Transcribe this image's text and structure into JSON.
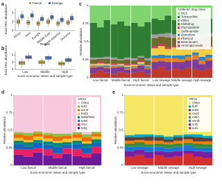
{
  "chart_data": [
    {
      "type": "box",
      "label": "a",
      "ylabel": "Total ARG abundance",
      "xlabel": "Region",
      "categories": [
        "Africa",
        "Asia",
        "Europe",
        "Middle East",
        "North America",
        "Oceania"
      ],
      "series": [
        {
          "name": "Faecal",
          "color": "#c9a24b",
          "values": [
            [
              2.4,
              2.8,
              3.0,
              3.2,
              3.6
            ],
            [
              2.3,
              2.7,
              2.9,
              3.1,
              3.5
            ],
            [
              2.2,
              2.6,
              2.8,
              3.0,
              3.4
            ],
            [
              2.5,
              2.8,
              3.0,
              3.2,
              3.5
            ],
            [
              2.3,
              2.6,
              2.8,
              3.0,
              3.3
            ],
            [
              2.4,
              2.7,
              2.9,
              3.1,
              3.4
            ]
          ]
        },
        {
          "name": "Sewage",
          "color": "#3f6fca",
          "values": [
            [
              3.0,
              3.4,
              3.6,
              3.8,
              4.2
            ],
            [
              3.1,
              3.5,
              3.7,
              3.9,
              4.3
            ],
            [
              2.8,
              3.1,
              3.3,
              3.5,
              3.8
            ],
            [
              3.0,
              3.3,
              3.5,
              3.7,
              4.0
            ],
            [
              2.7,
              3.0,
              3.2,
              3.4,
              3.7
            ],
            [
              2.9,
              3.2,
              3.4,
              3.6,
              3.9
            ]
          ]
        }
      ],
      "ylim": [
        2,
        4.5
      ],
      "yticks": [
        2,
        3,
        4
      ],
      "legend": "top"
    },
    {
      "type": "box",
      "label": "b",
      "ylabel": "Total ARG abundance",
      "xlabel": "Socio-economic status and sample type",
      "categories": [
        "Low",
        "Middle",
        "High"
      ],
      "series": [
        {
          "color": "#c9a24b",
          "values": [
            [
              2.3,
              2.7,
              2.9,
              3.1,
              3.5
            ],
            [
              2.4,
              2.8,
              3.0,
              3.2,
              3.6
            ],
            [
              2.2,
              2.6,
              2.8,
              3.0,
              3.3
            ]
          ]
        },
        {
          "color": "#3f6fca",
          "values": [
            [
              3.1,
              3.5,
              3.7,
              3.9,
              4.3
            ],
            [
              3.0,
              3.4,
              3.6,
              3.8,
              4.1
            ],
            [
              2.8,
              3.1,
              3.3,
              3.5,
              3.8
            ]
          ]
        }
      ],
      "ylim": [
        2,
        4.5
      ],
      "yticks": [
        2,
        3,
        4
      ]
    },
    {
      "type": "stacked_bar",
      "label": "c",
      "ylabel": "Relative abundance",
      "xlabel": "Socio-economic status and sample type",
      "groups": [
        "Low faecal",
        "Middle faecal",
        "High faecal",
        "Low sewage",
        "Middle sewage",
        "High sewage"
      ],
      "legend_title": "Antibiotic drug class",
      "series": [
        {
          "name": "Aminoglycoside",
          "color": "#c0392b",
          "values": [
            0.06,
            0.1,
            0.07,
            0.05,
            0.08,
            0.06,
            0.07,
            0.09,
            0.05,
            0.12,
            0.15,
            0.1,
            0.13,
            0.11,
            0.14,
            0.12,
            0.1,
            0.13
          ]
        },
        {
          "name": "Beta-lactam",
          "color": "#7d3c98",
          "values": [
            0.08,
            0.05,
            0.06,
            0.09,
            0.07,
            0.05,
            0.06,
            0.08,
            0.07,
            0.1,
            0.08,
            0.12,
            0.09,
            0.11,
            0.1,
            0.13,
            0.09,
            0.11
          ]
        },
        {
          "name": "Phenicol",
          "color": "#e67e22",
          "values": [
            0.02,
            0.01,
            0.02,
            0.02,
            0.01,
            0.02,
            0.02,
            0.01,
            0.02,
            0.05,
            0.04,
            0.06,
            0.05,
            0.04,
            0.05,
            0.06,
            0.05,
            0.04
          ]
        },
        {
          "name": "Quinolone",
          "color": "#2e86c1",
          "values": [
            0.01,
            0.01,
            0.02,
            0.01,
            0.01,
            0.02,
            0.01,
            0.01,
            0.02,
            0.04,
            0.05,
            0.03,
            0.04,
            0.05,
            0.03,
            0.04,
            0.05,
            0.04
          ]
        },
        {
          "name": "Sulfonamide",
          "color": "#f4d03f",
          "values": [
            0.02,
            0.03,
            0.02,
            0.01,
            0.02,
            0.02,
            0.02,
            0.03,
            0.01,
            0.1,
            0.12,
            0.09,
            0.11,
            0.1,
            0.12,
            0.08,
            0.1,
            0.11
          ]
        },
        {
          "name": "Glycopeptide",
          "color": "#e91e63",
          "values": [
            0.01,
            0.02,
            0.01,
            0.02,
            0.01,
            0.02,
            0.01,
            0.02,
            0.01,
            0.02,
            0.03,
            0.02,
            0.02,
            0.03,
            0.02,
            0.02,
            0.03,
            0.02
          ]
        },
        {
          "name": "Multidrug",
          "color": "#6e6a2c",
          "values": [
            0.05,
            0.04,
            0.06,
            0.05,
            0.04,
            0.06,
            0.05,
            0.04,
            0.06,
            0.12,
            0.1,
            0.14,
            0.11,
            0.13,
            0.12,
            0.11,
            0.14,
            0.12
          ]
        },
        {
          "name": "Other",
          "color": "#9e9e9e",
          "values": [
            0.03,
            0.02,
            0.03,
            0.03,
            0.02,
            0.03,
            0.03,
            0.02,
            0.03,
            0.05,
            0.04,
            0.06,
            0.05,
            0.04,
            0.05,
            0.06,
            0.04,
            0.05
          ]
        },
        {
          "name": "Tetracycline",
          "color": "#2e7d32",
          "values": [
            0.48,
            0.42,
            0.51,
            0.46,
            0.52,
            0.44,
            0.49,
            0.41,
            0.5,
            0.22,
            0.19,
            0.24,
            0.2,
            0.23,
            0.21,
            0.25,
            0.22,
            0.2
          ]
        },
        {
          "name": "MLS",
          "color": "#7fd46f",
          "values": [
            0.24,
            0.3,
            0.2,
            0.26,
            0.22,
            0.28,
            0.24,
            0.29,
            0.23,
            0.18,
            0.2,
            0.14,
            0.2,
            0.16,
            0.16,
            0.13,
            0.18,
            0.18
          ]
        }
      ],
      "ylim": [
        0,
        1
      ],
      "yticks": [
        0,
        0.25,
        0.5,
        0.75,
        1
      ]
    },
    {
      "type": "stacked_bar",
      "label": "d",
      "ylabel": "Relative abundance",
      "xlabel": "Socio-economic status and sample type",
      "groups": [
        "Low faecal",
        "Middle faecal",
        "High faecal"
      ],
      "legend_title": "ARGs",
      "series": [
        {
          "name": "tetQ",
          "color": "#6a1b9a",
          "values": [
            0.15,
            0.12,
            0.18,
            0.14,
            0.1,
            0.16,
            0.13,
            0.11,
            0.17
          ]
        },
        {
          "name": "cfxA",
          "color": "#e91e63",
          "values": [
            0.08,
            0.1,
            0.06,
            0.09,
            0.07,
            0.08,
            0.1,
            0.06,
            0.09
          ]
        },
        {
          "name": "tetW",
          "color": "#1565c0",
          "values": [
            0.07,
            0.05,
            0.08,
            0.06,
            0.09,
            0.05,
            0.07,
            0.08,
            0.06
          ]
        },
        {
          "name": "tetW/N/W",
          "color": "#00897b",
          "values": [
            0.05,
            0.06,
            0.04,
            0.05,
            0.06,
            0.04,
            0.05,
            0.06,
            0.05
          ]
        },
        {
          "name": "tet32",
          "color": "#fbc02d",
          "values": [
            0.04,
            0.03,
            0.05,
            0.04,
            0.03,
            0.05,
            0.04,
            0.03,
            0.04
          ]
        },
        {
          "name": "ermF",
          "color": "#ef6c00",
          "values": [
            0.05,
            0.06,
            0.04,
            0.05,
            0.06,
            0.04,
            0.05,
            0.06,
            0.04
          ]
        },
        {
          "name": "tetO",
          "color": "#8bc34a",
          "values": [
            0.03,
            0.04,
            0.03,
            0.03,
            0.04,
            0.03,
            0.03,
            0.04,
            0.03
          ]
        },
        {
          "name": "Other",
          "color": "#f8c8dc",
          "values": [
            0.53,
            0.54,
            0.52,
            0.54,
            0.55,
            0.55,
            0.53,
            0.56,
            0.52
          ]
        }
      ],
      "ylim": [
        0,
        1
      ],
      "yticks": [
        0,
        0.25,
        0.5,
        0.75,
        1
      ]
    },
    {
      "type": "stacked_bar",
      "label": "e",
      "ylabel": "Relative abundance",
      "xlabel": "Socio-economic status and sample type",
      "groups": [
        "Low sewage",
        "Middle sewage",
        "High sewage"
      ],
      "legend_title": "ARGs",
      "series": [
        {
          "name": "sul1",
          "color": "#d32f2f",
          "values": [
            0.12,
            0.15,
            0.1,
            0.14,
            0.11,
            0.13,
            0.16,
            0.12,
            0.1
          ]
        },
        {
          "name": "sul2",
          "color": "#7b1fa2",
          "values": [
            0.08,
            0.07,
            0.09,
            0.06,
            0.08,
            0.07,
            0.05,
            0.08,
            0.09
          ]
        },
        {
          "name": "ermB",
          "color": "#1976d2",
          "values": [
            0.06,
            0.05,
            0.07,
            0.06,
            0.05,
            0.06,
            0.07,
            0.05,
            0.06
          ]
        },
        {
          "name": "mefA",
          "color": "#388e3c",
          "values": [
            0.05,
            0.06,
            0.04,
            0.05,
            0.06,
            0.05,
            0.04,
            0.06,
            0.05
          ]
        },
        {
          "name": "msrE",
          "color": "#f57c00",
          "values": [
            0.04,
            0.03,
            0.05,
            0.04,
            0.03,
            0.04,
            0.05,
            0.03,
            0.04
          ]
        },
        {
          "name": "tetW",
          "color": "#5d4037",
          "values": [
            0.05,
            0.04,
            0.06,
            0.05,
            0.04,
            0.05,
            0.04,
            0.06,
            0.05
          ]
        },
        {
          "name": "floR",
          "color": "#00acc1",
          "values": [
            0.03,
            0.04,
            0.03,
            0.03,
            0.04,
            0.03,
            0.03,
            0.04,
            0.03
          ]
        },
        {
          "name": "Other",
          "color": "#f5e663",
          "values": [
            0.57,
            0.56,
            0.56,
            0.57,
            0.59,
            0.57,
            0.56,
            0.56,
            0.58
          ]
        }
      ],
      "ylim": [
        0,
        1
      ],
      "yticks": [
        0,
        0.25,
        0.5,
        0.75,
        1
      ]
    }
  ]
}
